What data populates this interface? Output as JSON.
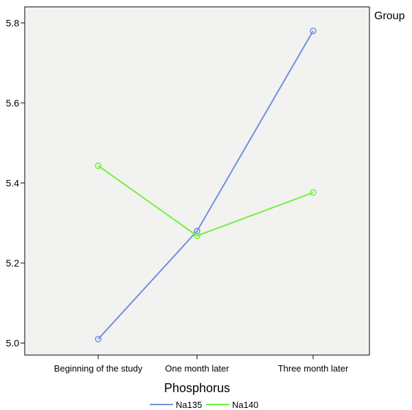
{
  "chart_data": {
    "type": "line",
    "title": "",
    "xlabel": "Phosphorus",
    "ylabel": "",
    "categories": [
      "Beginning of the study",
      "One month later",
      "Three month later"
    ],
    "yticks": [
      "5.0",
      "5.2",
      "5.4",
      "5.6",
      "5.8"
    ],
    "ylim": [
      4.97,
      5.84
    ],
    "legend_title": "Group",
    "legend_placement": "bottom",
    "grid": false,
    "background_color": "#f2f2f0",
    "series": [
      {
        "name": "Na135",
        "color": "#6f8ee0",
        "values": [
          5.01,
          5.28,
          5.78
        ]
      },
      {
        "name": "Na140",
        "color": "#6ff23c",
        "values": [
          5.443,
          5.268,
          5.376
        ]
      }
    ]
  }
}
